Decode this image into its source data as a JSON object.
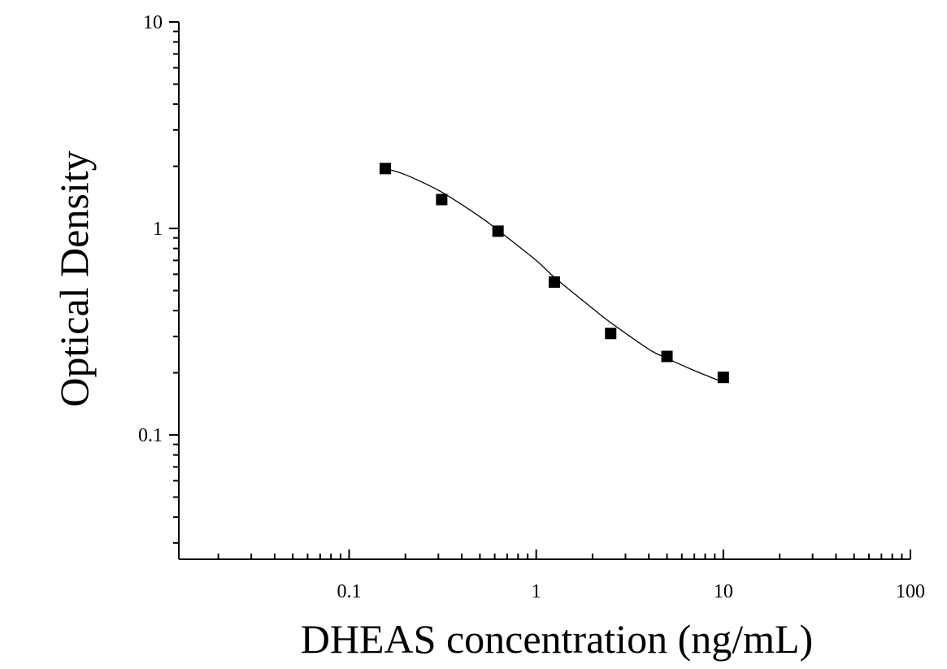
{
  "chart_data": {
    "type": "scatter",
    "title": "",
    "xlabel": "DHEAS concentration (ng/mL)",
    "ylabel": "Optical Density",
    "xscale": "log",
    "yscale": "log",
    "xlim": [
      0.0123,
      100
    ],
    "ylim": [
      0.025,
      10
    ],
    "grid": false,
    "legend": "none",
    "x_ticks": [
      {
        "value": 0.1,
        "label": "0.1"
      },
      {
        "value": 1,
        "label": "1"
      },
      {
        "value": 10,
        "label": "10"
      },
      {
        "value": 100,
        "label": "100"
      }
    ],
    "y_ticks": [
      {
        "value": 0.1,
        "label": "0.1"
      },
      {
        "value": 1,
        "label": "1"
      },
      {
        "value": 10,
        "label": "10"
      }
    ],
    "series": [
      {
        "marker": "square",
        "color": "#000000",
        "x": [
          0.156,
          0.3125,
          0.625,
          1.25,
          2.5,
          5,
          10
        ],
        "y": [
          1.95,
          1.38,
          0.97,
          0.55,
          0.31,
          0.24,
          0.19
        ]
      }
    ],
    "fit_curve": {
      "type": "4PL",
      "color": "#000000",
      "x_range": [
        0.156,
        10
      ],
      "points": [
        [
          0.156,
          1.95
        ],
        [
          0.2,
          1.82
        ],
        [
          0.3125,
          1.5
        ],
        [
          0.5,
          1.14
        ],
        [
          0.625,
          0.98
        ],
        [
          1.0,
          0.7
        ],
        [
          1.25,
          0.58
        ],
        [
          2.0,
          0.41
        ],
        [
          2.5,
          0.35
        ],
        [
          4.0,
          0.26
        ],
        [
          5.0,
          0.235
        ],
        [
          7.0,
          0.205
        ],
        [
          10.0,
          0.18
        ]
      ]
    }
  }
}
